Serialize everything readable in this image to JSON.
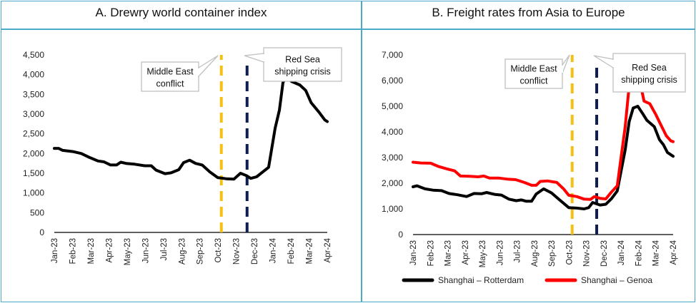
{
  "panels": [
    {
      "title": "A. Drewry world container index"
    },
    {
      "title": "B. Freight rates from Asia to Europe"
    }
  ],
  "colors": {
    "border": "#4aaac8",
    "event_conflict": "#f5c016",
    "event_redsea": "#0d1f4f",
    "rotterdam": "#000000",
    "genoa": "#ff0000",
    "wci": "#000000"
  },
  "chart_data": [
    {
      "type": "line",
      "title": "A. Drewry world container index",
      "x_tick_labels": [
        "Jan-23",
        "Feb-23",
        "Mar-23",
        "Apr-23",
        "May-23",
        "Jun-23",
        "Jul-23",
        "Aug-23",
        "Sep-23",
        "Oct-23",
        "Nov-23",
        "Dec-23",
        "Jan-24",
        "Feb-24",
        "Mar-24",
        "Apr-24"
      ],
      "y_tick_labels": [
        "0",
        "500",
        "1,000",
        "1,500",
        "2,000",
        "2,500",
        "3,000",
        "3,500",
        "4,000",
        "4,500"
      ],
      "xlim": [
        "2023-01-01",
        "2024-04-01"
      ],
      "ylim": [
        0,
        4500
      ],
      "grid": false,
      "events": [
        {
          "label": "Middle East conflict",
          "date": "2023-10-07",
          "color": "#f5c016"
        },
        {
          "label": "Red Sea shipping crisis",
          "date": "2023-11-19",
          "color": "#0d1f4f"
        }
      ],
      "series": [
        {
          "color": "#000000",
          "points": [
            [
              "2023-01-01",
              2130
            ],
            [
              "2023-01-08",
              2130
            ],
            [
              "2023-01-15",
              2080
            ],
            [
              "2023-02-01",
              2050
            ],
            [
              "2023-02-15",
              2000
            ],
            [
              "2023-03-01",
              1900
            ],
            [
              "2023-03-15",
              1810
            ],
            [
              "2023-03-25",
              1790
            ],
            [
              "2023-04-05",
              1710
            ],
            [
              "2023-04-15",
              1710
            ],
            [
              "2023-04-22",
              1780
            ],
            [
              "2023-05-01",
              1750
            ],
            [
              "2023-05-15",
              1730
            ],
            [
              "2023-06-01",
              1690
            ],
            [
              "2023-06-12",
              1690
            ],
            [
              "2023-06-20",
              1580
            ],
            [
              "2023-07-05",
              1490
            ],
            [
              "2023-07-15",
              1510
            ],
            [
              "2023-07-28",
              1590
            ],
            [
              "2023-08-05",
              1770
            ],
            [
              "2023-08-15",
              1830
            ],
            [
              "2023-08-25",
              1750
            ],
            [
              "2023-09-05",
              1710
            ],
            [
              "2023-09-18",
              1530
            ],
            [
              "2023-10-01",
              1390
            ],
            [
              "2023-10-15",
              1360
            ],
            [
              "2023-10-28",
              1350
            ],
            [
              "2023-11-08",
              1500
            ],
            [
              "2023-11-18",
              1440
            ],
            [
              "2023-11-25",
              1370
            ],
            [
              "2023-12-05",
              1410
            ],
            [
              "2023-12-15",
              1530
            ],
            [
              "2023-12-25",
              1650
            ],
            [
              "2024-01-05",
              2650
            ],
            [
              "2024-01-12",
              3100
            ],
            [
              "2024-01-18",
              3800
            ],
            [
              "2024-01-25",
              3970
            ],
            [
              "2024-02-01",
              3830
            ],
            [
              "2024-02-15",
              3740
            ],
            [
              "2024-02-25",
              3600
            ],
            [
              "2024-03-05",
              3290
            ],
            [
              "2024-03-18",
              3050
            ],
            [
              "2024-03-28",
              2850
            ],
            [
              "2024-04-01",
              2810
            ]
          ]
        }
      ]
    },
    {
      "type": "line",
      "title": "B. Freight rates from Asia to Europe",
      "x_tick_labels": [
        "Jan-23",
        "Feb-23",
        "Mar-23",
        "Apr-23",
        "May-23",
        "Jun-23",
        "Jul-23",
        "Aug-23",
        "Sep-23",
        "Oct-23",
        "Nov-23",
        "Dec-23",
        "Jan-24",
        "Feb-24",
        "Mar-24",
        "Apr-24"
      ],
      "y_tick_labels": [
        "0",
        "1,000",
        "2,000",
        "3,000",
        "4,000",
        "5,000",
        "6,000",
        "7,000"
      ],
      "xlim": [
        "2023-01-01",
        "2024-04-01"
      ],
      "ylim": [
        0,
        7000
      ],
      "grid": false,
      "legend": "bottom",
      "events": [
        {
          "label": "Middle East conflict",
          "date": "2023-10-07",
          "color": "#f5c016"
        },
        {
          "label": "Red Sea shipping crisis",
          "date": "2023-11-19",
          "color": "#0d1f4f"
        }
      ],
      "series": [
        {
          "name": "Shanghai – Rotterdam",
          "color": "#000000",
          "points": [
            [
              "2023-01-01",
              1860
            ],
            [
              "2023-01-08",
              1900
            ],
            [
              "2023-01-22",
              1780
            ],
            [
              "2023-02-05",
              1730
            ],
            [
              "2023-02-20",
              1710
            ],
            [
              "2023-03-05",
              1600
            ],
            [
              "2023-03-20",
              1550
            ],
            [
              "2023-04-05",
              1480
            ],
            [
              "2023-04-18",
              1600
            ],
            [
              "2023-05-01",
              1590
            ],
            [
              "2023-05-10",
              1640
            ],
            [
              "2023-05-25",
              1560
            ],
            [
              "2023-06-05",
              1540
            ],
            [
              "2023-06-18",
              1380
            ],
            [
              "2023-07-01",
              1320
            ],
            [
              "2023-07-10",
              1350
            ],
            [
              "2023-07-18",
              1300
            ],
            [
              "2023-07-28",
              1300
            ],
            [
              "2023-08-05",
              1580
            ],
            [
              "2023-08-18",
              1780
            ],
            [
              "2023-09-01",
              1620
            ],
            [
              "2023-09-15",
              1350
            ],
            [
              "2023-10-01",
              1050
            ],
            [
              "2023-10-15",
              1030
            ],
            [
              "2023-10-28",
              1000
            ],
            [
              "2023-11-05",
              1050
            ],
            [
              "2023-11-12",
              1250
            ],
            [
              "2023-11-25",
              1150
            ],
            [
              "2023-12-05",
              1180
            ],
            [
              "2023-12-15",
              1400
            ],
            [
              "2023-12-25",
              1700
            ],
            [
              "2024-01-08",
              3300
            ],
            [
              "2024-01-15",
              4400
            ],
            [
              "2024-01-22",
              4930
            ],
            [
              "2024-01-30",
              5000
            ],
            [
              "2024-02-08",
              4700
            ],
            [
              "2024-02-15",
              4450
            ],
            [
              "2024-02-28",
              4200
            ],
            [
              "2024-03-08",
              3700
            ],
            [
              "2024-03-15",
              3500
            ],
            [
              "2024-03-22",
              3200
            ],
            [
              "2024-04-01",
              3050
            ]
          ]
        },
        {
          "name": "Shanghai – Genoa",
          "color": "#ff0000",
          "points": [
            [
              "2023-01-01",
              2820
            ],
            [
              "2023-01-15",
              2790
            ],
            [
              "2023-02-01",
              2780
            ],
            [
              "2023-02-15",
              2650
            ],
            [
              "2023-03-01",
              2560
            ],
            [
              "2023-03-15",
              2480
            ],
            [
              "2023-03-25",
              2280
            ],
            [
              "2023-04-10",
              2270
            ],
            [
              "2023-04-25",
              2250
            ],
            [
              "2023-05-05",
              2280
            ],
            [
              "2023-05-15",
              2200
            ],
            [
              "2023-06-01",
              2200
            ],
            [
              "2023-06-15",
              2160
            ],
            [
              "2023-06-30",
              2140
            ],
            [
              "2023-07-15",
              2030
            ],
            [
              "2023-07-28",
              1920
            ],
            [
              "2023-08-05",
              1920
            ],
            [
              "2023-08-12",
              2070
            ],
            [
              "2023-08-25",
              2090
            ],
            [
              "2023-09-10",
              2030
            ],
            [
              "2023-09-22",
              1780
            ],
            [
              "2023-10-01",
              1530
            ],
            [
              "2023-10-15",
              1480
            ],
            [
              "2023-10-28",
              1380
            ],
            [
              "2023-11-08",
              1370
            ],
            [
              "2023-11-15",
              1480
            ],
            [
              "2023-11-25",
              1410
            ],
            [
              "2023-12-05",
              1390
            ],
            [
              "2023-12-15",
              1660
            ],
            [
              "2023-12-25",
              1900
            ],
            [
              "2024-01-08",
              4200
            ],
            [
              "2024-01-15",
              5800
            ],
            [
              "2024-01-22",
              6300
            ],
            [
              "2024-01-30",
              6350
            ],
            [
              "2024-02-10",
              5200
            ],
            [
              "2024-02-20",
              5100
            ],
            [
              "2024-03-01",
              4700
            ],
            [
              "2024-03-10",
              4300
            ],
            [
              "2024-03-20",
              3850
            ],
            [
              "2024-03-28",
              3650
            ],
            [
              "2024-04-01",
              3620
            ]
          ]
        }
      ]
    }
  ]
}
